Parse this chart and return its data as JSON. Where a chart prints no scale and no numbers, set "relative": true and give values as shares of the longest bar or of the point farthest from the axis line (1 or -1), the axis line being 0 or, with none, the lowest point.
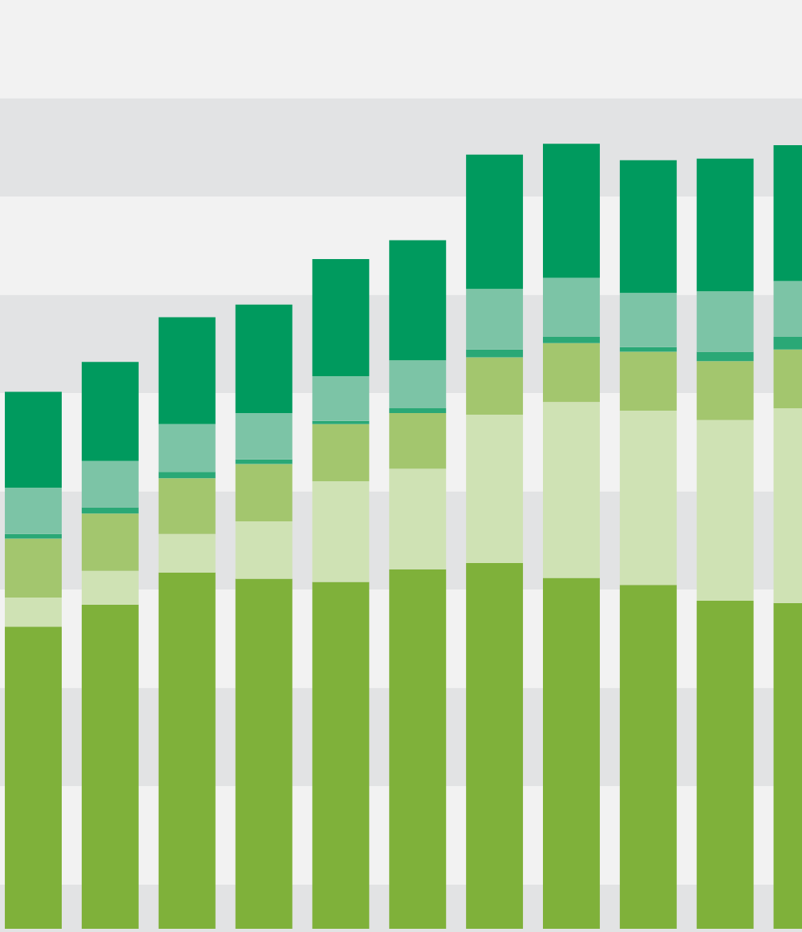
{
  "chart_data": {
    "type": "bar",
    "stacked": true,
    "relative": true,
    "categories": [
      null,
      null,
      null,
      null,
      null,
      null,
      null,
      null,
      null,
      null,
      null
    ],
    "series": [
      {
        "color": "#7fb13a",
        "values": [
          0.385,
          0.413,
          0.454,
          0.446,
          0.442,
          0.458,
          0.466,
          0.447,
          0.438,
          0.418,
          0.415
        ]
      },
      {
        "color": "#cfe2b4",
        "values": [
          0.037,
          0.043,
          0.049,
          0.073,
          0.128,
          0.128,
          0.189,
          0.224,
          0.222,
          0.23,
          0.248
        ]
      },
      {
        "color": "#a3c66e",
        "values": [
          0.075,
          0.073,
          0.071,
          0.073,
          0.073,
          0.071,
          0.073,
          0.075,
          0.075,
          0.075,
          0.075
        ]
      },
      {
        "color": "#2aa876",
        "values": [
          0.006,
          0.008,
          0.008,
          0.006,
          0.004,
          0.006,
          0.01,
          0.008,
          0.006,
          0.012,
          0.016
        ]
      },
      {
        "color": "#7cc4a6",
        "values": [
          0.059,
          0.059,
          0.061,
          0.059,
          0.057,
          0.061,
          0.077,
          0.075,
          0.069,
          0.077,
          0.071
        ]
      },
      {
        "color": "#009a5e",
        "values": [
          0.122,
          0.126,
          0.136,
          0.138,
          0.149,
          0.153,
          0.171,
          0.171,
          0.169,
          0.169,
          0.173
        ]
      }
    ]
  }
}
